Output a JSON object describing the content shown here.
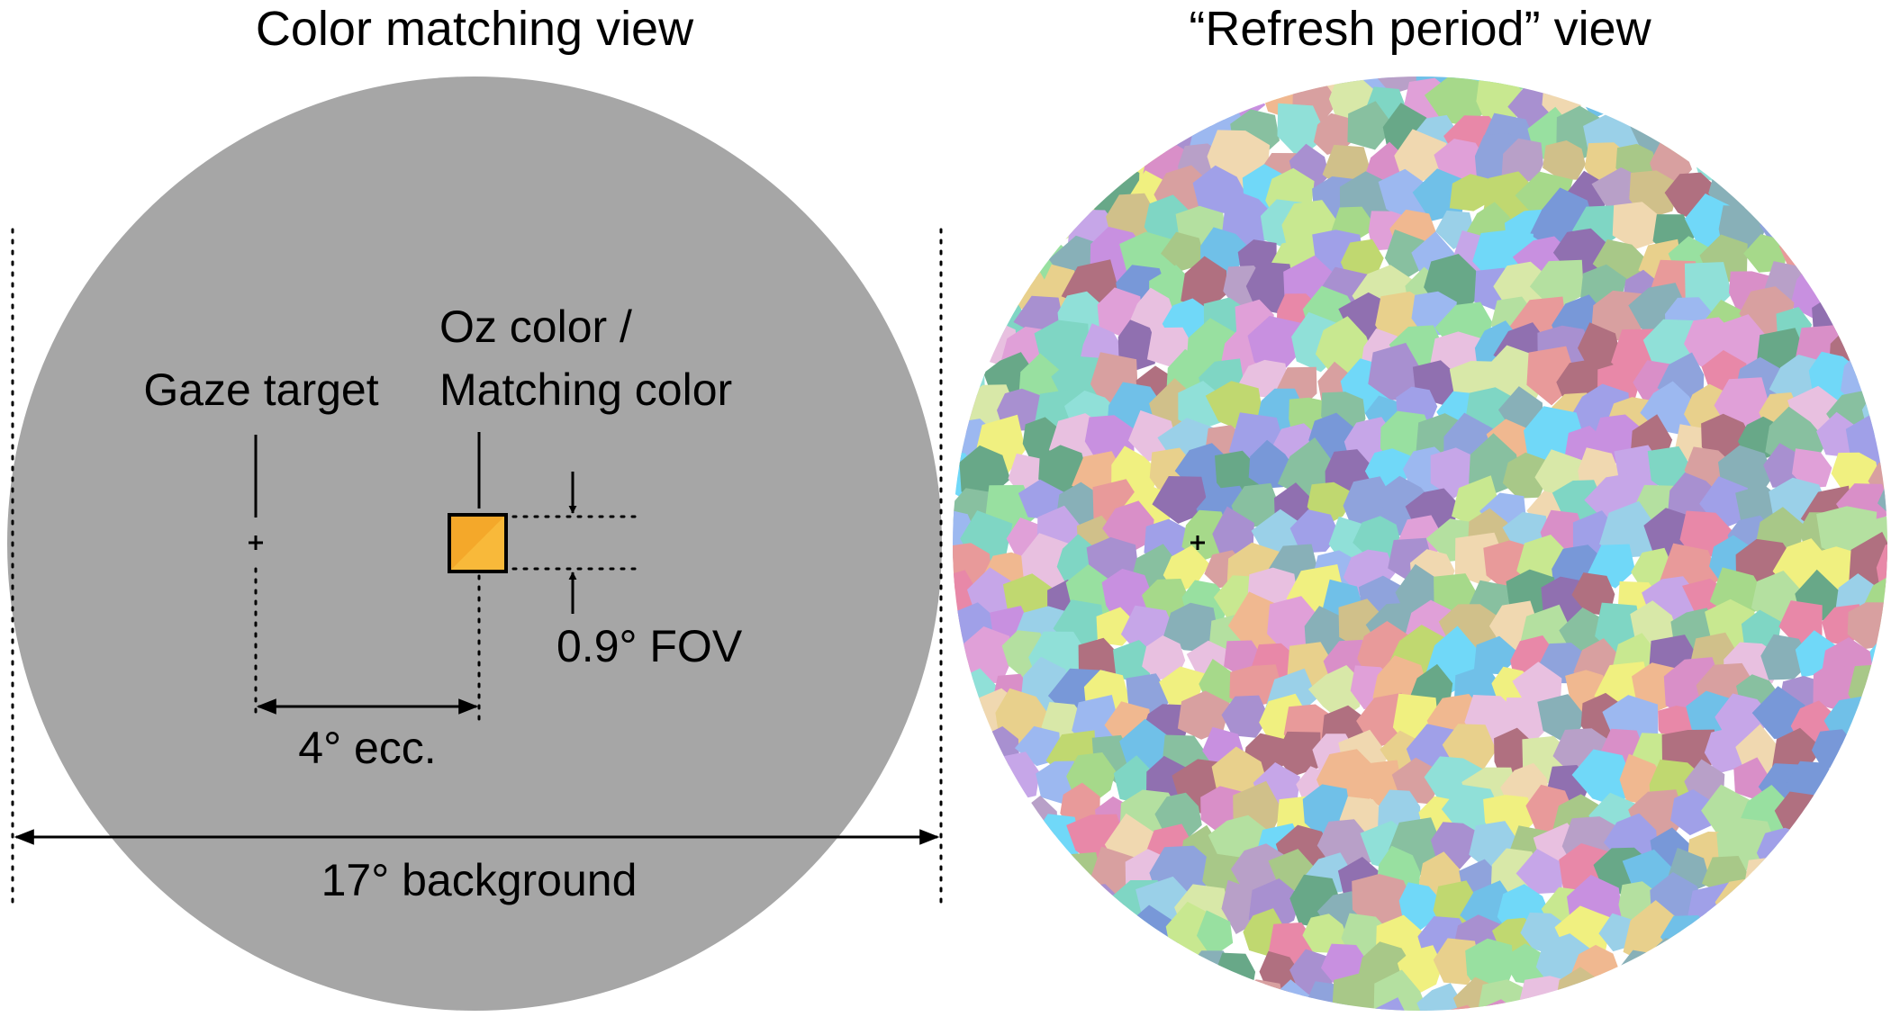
{
  "left_panel": {
    "title": "Color matching view",
    "gaze_label": "Gaze target",
    "stimulus_label_line1": "Oz color /",
    "stimulus_label_line2": "Matching color",
    "fov_label": "0.9° FOV",
    "eccentricity_label": "4° ecc.",
    "background_label": "17° background",
    "colors": {
      "background_disc": "#a6a6a6",
      "stimulus_fill": "#f4a82a",
      "stimulus_diagonal": "#f8b93a"
    }
  },
  "right_panel": {
    "title": "“Refresh period” view",
    "palette": [
      "#8fa3dc",
      "#a6d98a",
      "#d98fc8",
      "#7fd6c4",
      "#c6a6e8",
      "#e8d08c",
      "#9ad0e8",
      "#e89a9a",
      "#b4e0a0",
      "#a890d0",
      "#d0c08a",
      "#88c0a0",
      "#e0a0d8",
      "#9cb8f0",
      "#c8e890",
      "#f0b890",
      "#90e0d8",
      "#b8a0c8",
      "#d8e8a8",
      "#7898d8",
      "#e888a8",
      "#a8c888",
      "#c890e0",
      "#88b0b8",
      "#f0d8b0",
      "#98e0a0",
      "#b07080",
      "#70c0e8",
      "#d8a0a0",
      "#a0a0e8",
      "#c0d870",
      "#e8c0e0",
      "#68a888",
      "#f0f080",
      "#9070b0",
      "#70d8f8"
    ]
  }
}
